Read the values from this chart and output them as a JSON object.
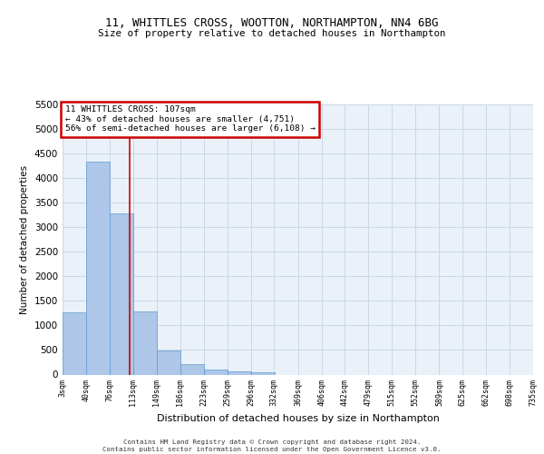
{
  "title1": "11, WHITTLES CROSS, WOOTTON, NORTHAMPTON, NN4 6BG",
  "title2": "Size of property relative to detached houses in Northampton",
  "xlabel": "Distribution of detached houses by size in Northampton",
  "ylabel": "Number of detached properties",
  "bin_labels": [
    "3sqm",
    "40sqm",
    "76sqm",
    "113sqm",
    "149sqm",
    "186sqm",
    "223sqm",
    "259sqm",
    "296sqm",
    "332sqm",
    "369sqm",
    "406sqm",
    "442sqm",
    "479sqm",
    "515sqm",
    "552sqm",
    "589sqm",
    "625sqm",
    "662sqm",
    "698sqm",
    "735sqm"
  ],
  "bin_edges": [
    3,
    40,
    76,
    113,
    149,
    186,
    223,
    259,
    296,
    332,
    369,
    406,
    442,
    479,
    515,
    552,
    589,
    625,
    662,
    698,
    735
  ],
  "bar_heights": [
    1260,
    4330,
    3290,
    1280,
    490,
    210,
    95,
    60,
    55,
    0,
    0,
    0,
    0,
    0,
    0,
    0,
    0,
    0,
    0,
    0
  ],
  "bar_color": "#aec6e8",
  "bar_edge_color": "#5b9bd5",
  "grid_color": "#c8d8e8",
  "bg_color": "#eaf1f8",
  "vline_x": 107,
  "vline_color": "#cc0000",
  "ylim": [
    0,
    5500
  ],
  "yticks": [
    0,
    500,
    1000,
    1500,
    2000,
    2500,
    3000,
    3500,
    4000,
    4500,
    5000,
    5500
  ],
  "annotation_text": "11 WHITTLES CROSS: 107sqm\n← 43% of detached houses are smaller (4,751)\n56% of semi-detached houses are larger (6,108) →",
  "annotation_box_color": "#cc0000",
  "footer1": "Contains HM Land Registry data © Crown copyright and database right 2024.",
  "footer2": "Contains public sector information licensed under the Open Government Licence v3.0."
}
